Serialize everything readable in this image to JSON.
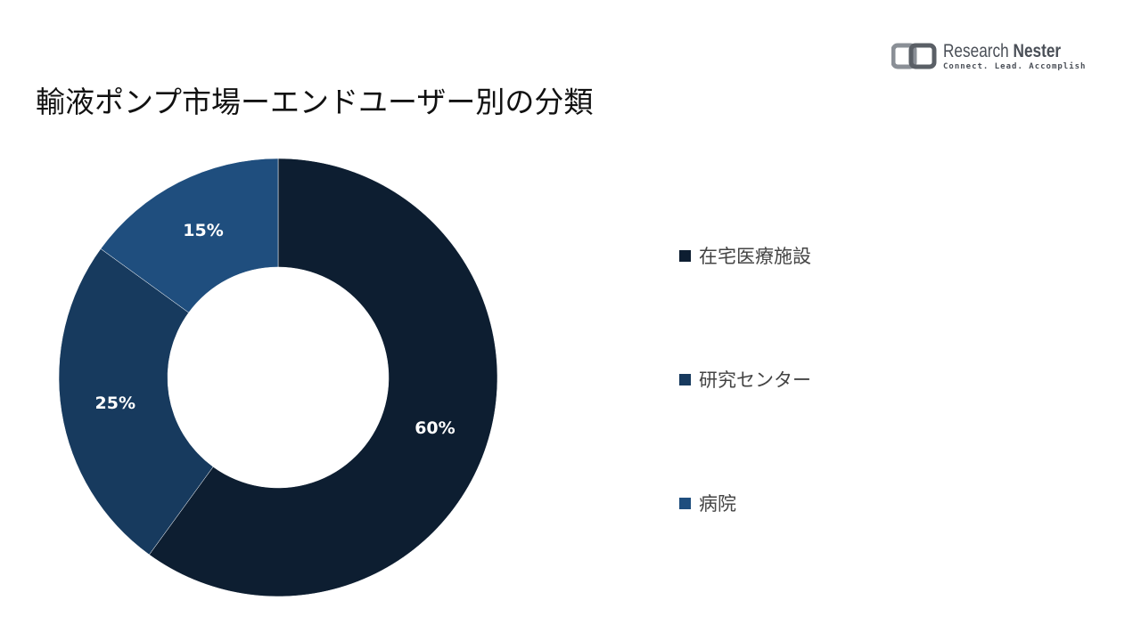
{
  "title": "輸液ポンプ市場ーエンドユーザー別の分類",
  "logo": {
    "name_part1": "Research",
    "name_part2": "Nester",
    "tagline": "Connect. Lead. Accomplish",
    "icon": "research-nester-logo-icon"
  },
  "chart_data": {
    "type": "pie",
    "subtype": "donut",
    "title": "輸液ポンプ市場ーエンドユーザー別の分類",
    "legend_position": "right",
    "slices": [
      {
        "label": "在宅医療施設",
        "value": 60,
        "display": "60%",
        "color": "#0d1e31"
      },
      {
        "label": "研究センター",
        "value": 25,
        "display": "25%",
        "color": "#173a5e"
      },
      {
        "label": "病院",
        "value": 15,
        "display": "15%",
        "color": "#1f4e7e"
      }
    ]
  }
}
